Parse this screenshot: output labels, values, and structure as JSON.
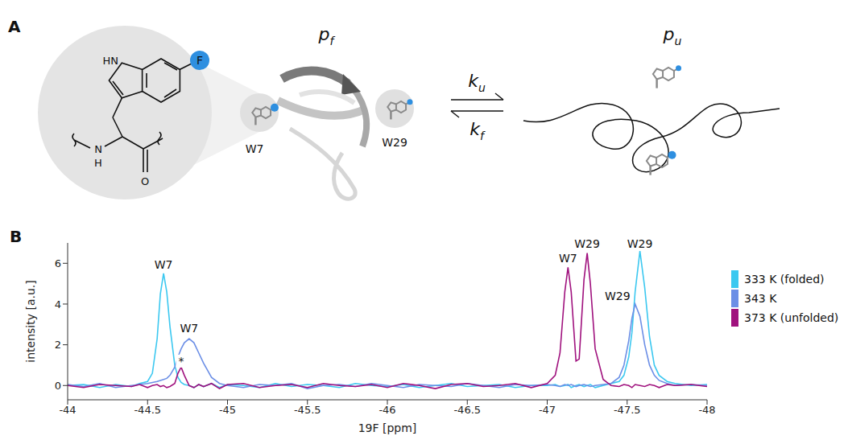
{
  "panel_labels": [
    "A",
    "B"
  ],
  "diagram": {
    "molecule": {
      "ring_nh": "HN",
      "fluorine": "F",
      "amide_n": "N",
      "amide_h": "H",
      "carbonyl_o": "O"
    },
    "folded": {
      "symbol": "p",
      "subscript": "f",
      "residues": [
        "W7",
        "W29"
      ]
    },
    "unfolded": {
      "symbol": "p",
      "subscript": "u"
    },
    "rates": {
      "forward": {
        "symbol": "k",
        "subscript": "u"
      },
      "backward": {
        "symbol": "k",
        "subscript": "f"
      }
    }
  },
  "chart_data": {
    "type": "line",
    "x_label": "19F [ppm]",
    "y_label": "intensity [a.u.]",
    "xlim": [
      -44,
      -48
    ],
    "xticks": [
      -44,
      -44.5,
      -45,
      -45.5,
      -46,
      -46.5,
      -47,
      -47.5,
      -48
    ],
    "ylim": [
      -0.7,
      7
    ],
    "yticks": [
      0,
      2,
      4,
      6
    ],
    "legend": "right",
    "x": [
      -44,
      -44.1,
      -44.2,
      -44.3,
      -44.4,
      -44.45,
      -44.5,
      -44.53,
      -44.56,
      -44.58,
      -44.6,
      -44.62,
      -44.64,
      -44.67,
      -44.69,
      -44.71,
      -44.73,
      -44.76,
      -44.79,
      -44.82,
      -44.85,
      -44.9,
      -44.95,
      -45,
      -45.1,
      -45.2,
      -45.3,
      -45.4,
      -45.5,
      -45.6,
      -45.7,
      -45.8,
      -45.9,
      -46,
      -46.1,
      -46.2,
      -46.3,
      -46.4,
      -46.5,
      -46.6,
      -46.7,
      -46.8,
      -46.9,
      -47,
      -47.05,
      -47.08,
      -47.11,
      -47.13,
      -47.15,
      -47.18,
      -47.2,
      -47.23,
      -47.25,
      -47.27,
      -47.3,
      -47.35,
      -47.4,
      -47.45,
      -47.48,
      -47.51,
      -47.53,
      -47.55,
      -47.58,
      -47.61,
      -47.64,
      -47.67,
      -47.7,
      -47.75,
      -47.8,
      -47.9,
      -48
    ],
    "series": [
      {
        "name": "333 K (folded)",
        "color": "#3cc8f0",
        "values": [
          0,
          0.05,
          -0.1,
          0.05,
          -0.05,
          0.1,
          0.2,
          0.6,
          2.3,
          4.5,
          5.5,
          4.6,
          2.9,
          1.0,
          0.4,
          0.15,
          0.05,
          0,
          -0.1,
          0.05,
          -0.05,
          0.1,
          -0.1,
          0.05,
          0,
          -0.1,
          0.1,
          -0.05,
          0.05,
          0,
          -0.1,
          0.1,
          0,
          -0.05,
          0.05,
          -0.1,
          0,
          0.1,
          -0.05,
          0,
          0.05,
          -0.1,
          0,
          0,
          0.05,
          -0.05,
          0,
          0.05,
          -0.1,
          0,
          0.05,
          -0.05,
          0,
          0.05,
          -0.1,
          0,
          0.1,
          0.2,
          0.5,
          1.4,
          2.6,
          4.6,
          6.6,
          4.8,
          2.4,
          1.0,
          0.5,
          0.2,
          0.1,
          0,
          0.05
        ]
      },
      {
        "name": "343 K",
        "color": "#6c8fe6",
        "values": [
          0.05,
          -0.05,
          0.1,
          -0.1,
          0,
          0.05,
          0.1,
          0.15,
          0.2,
          0.25,
          0.3,
          0.35,
          0.5,
          0.9,
          1.4,
          1.8,
          2.1,
          2.3,
          2.1,
          1.6,
          1.1,
          0.4,
          0.1,
          0,
          -0.1,
          0.05,
          0,
          0.1,
          -0.15,
          0,
          0.05,
          -0.05,
          0.1,
          0,
          -0.1,
          0.05,
          0,
          -0.05,
          0.1,
          0,
          -0.1,
          0.05,
          0,
          0.05,
          0,
          -0.05,
          0.05,
          0,
          0.05,
          -0.05,
          0,
          0.05,
          0,
          -0.05,
          0,
          0.05,
          0.1,
          0.4,
          1.0,
          2.2,
          3.3,
          4.0,
          3.4,
          2.0,
          1.0,
          0.5,
          0.25,
          0.1,
          0,
          0.05,
          0
        ]
      },
      {
        "name": "373 K (unfolded)",
        "color": "#a0127e",
        "values": [
          0,
          -0.1,
          0.05,
          0,
          -0.05,
          0.05,
          -0.1,
          0,
          0.05,
          -0.05,
          0,
          -0.1,
          -0.05,
          0.1,
          0.6,
          0.9,
          0.5,
          0,
          -0.1,
          0.05,
          -0.05,
          0.1,
          -0.15,
          0.05,
          0.1,
          -0.1,
          0,
          0.05,
          -0.1,
          0.1,
          0,
          -0.05,
          0.05,
          -0.1,
          0.1,
          0,
          -0.15,
          0.05,
          0.1,
          -0.05,
          0,
          0.1,
          -0.1,
          0.1,
          0.5,
          1.6,
          4.6,
          5.8,
          4.6,
          1.2,
          1.3,
          5.2,
          6.5,
          5.0,
          1.8,
          0.3,
          0,
          -0.05,
          0.05,
          0,
          -0.1,
          0.05,
          0,
          -0.05,
          0.05,
          0,
          -0.1,
          0.05,
          0,
          0.05,
          -0.05
        ]
      }
    ],
    "annotations": [
      {
        "text": "W7",
        "x": -44.6,
        "y": 5.95
      },
      {
        "text": "*",
        "x": -44.71,
        "y": 1.2
      },
      {
        "text": "W7",
        "x": -44.76,
        "y": 2.8
      },
      {
        "text": "W7",
        "x": -47.13,
        "y": 6.25
      },
      {
        "text": "W29",
        "x": -47.25,
        "y": 6.95
      },
      {
        "text": "W29",
        "x": -47.44,
        "y": 4.4
      },
      {
        "text": "W29",
        "x": -47.58,
        "y": 6.95
      }
    ]
  }
}
